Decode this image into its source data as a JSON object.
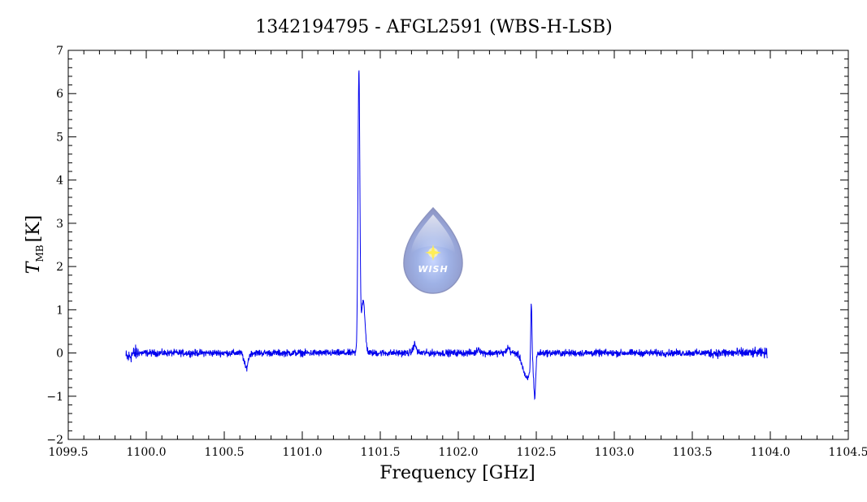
{
  "chart_data": {
    "type": "line",
    "title": "1342194795 - AFGL2591 (WBS-H-LSB)",
    "xlabel": "Frequency [GHz]",
    "ylabel_main": "T",
    "ylabel_sub": "MB",
    "ylabel_unit": "[K]",
    "xlim": [
      1099.5,
      1104.5
    ],
    "ylim": [
      -2,
      7
    ],
    "x_ticks": [
      "1099.5",
      "1100.0",
      "1100.5",
      "1101.0",
      "1101.5",
      "1102.0",
      "1102.5",
      "1103.0",
      "1103.5",
      "1104.0",
      "1104.5"
    ],
    "y_ticks": [
      "−2",
      "−1",
      "0",
      "1",
      "2",
      "3",
      "4",
      "5",
      "6",
      "7"
    ],
    "grid": false,
    "line_color": "#0000ee",
    "series": [
      {
        "x_range": [
          1099.87,
          1103.98
        ],
        "baseline": 0,
        "noise_amplitude": 0.08,
        "features": [
          {
            "center": 1099.88,
            "amplitude": -0.1,
            "width": 0.02
          },
          {
            "center": 1100.64,
            "amplitude": -0.35,
            "width": 0.012
          },
          {
            "center": 1101.363,
            "amplitude": 6.5,
            "width": 0.006
          },
          {
            "center": 1101.39,
            "amplitude": 1.2,
            "width": 0.012
          },
          {
            "center": 1101.72,
            "amplitude": 0.2,
            "width": 0.01
          },
          {
            "center": 1102.13,
            "amplitude": 0.1,
            "width": 0.01
          },
          {
            "center": 1102.32,
            "amplitude": 0.12,
            "width": 0.01
          },
          {
            "center": 1102.44,
            "amplitude": -0.6,
            "width": 0.025
          },
          {
            "center": 1102.468,
            "amplitude": 1.45,
            "width": 0.004
          },
          {
            "center": 1102.49,
            "amplitude": -0.95,
            "width": 0.006
          }
        ]
      }
    ]
  },
  "logo": {
    "text": "WISH",
    "color": "#9aaad8"
  }
}
